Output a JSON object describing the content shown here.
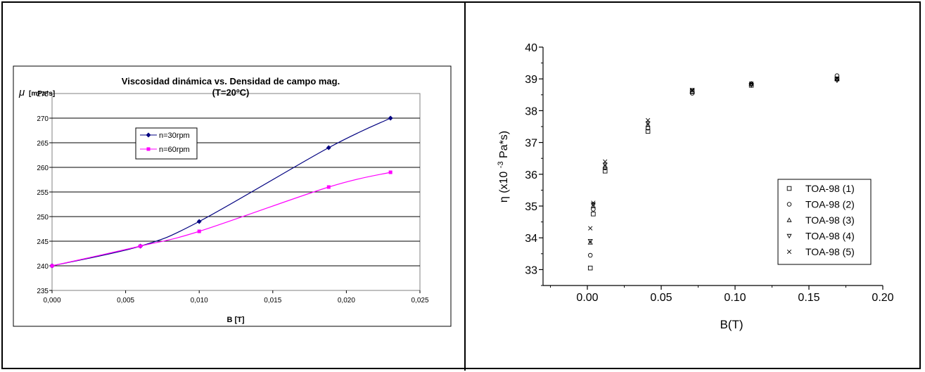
{
  "chart_data": [
    {
      "type": "line",
      "title": "Viscosidad dinámica vs. Densidad de campo mag.",
      "subtitle": "(T=20ºC)",
      "ylabel_symbol": "μ",
      "ylabel": "[mPa*s]",
      "xlabel": "B [T]",
      "xlim": [
        0,
        0.025
      ],
      "ylim": [
        235,
        275
      ],
      "xticks": [
        "0,000",
        "0,005",
        "0,010",
        "0,015",
        "0,020",
        "0,025"
      ],
      "yticks": [
        "235",
        "240",
        "245",
        "250",
        "255",
        "260",
        "265",
        "270",
        "275"
      ],
      "grid": true,
      "legend_position": "upper-left",
      "series": [
        {
          "name": "n=30rpm",
          "color": "#000080",
          "marker": "diamond",
          "x": [
            0,
            0.006,
            0.01,
            0.0188,
            0.023
          ],
          "y": [
            240,
            244,
            249,
            264,
            270
          ]
        },
        {
          "name": "n=60rpm",
          "color": "#ff00ff",
          "marker": "square",
          "x": [
            0,
            0.006,
            0.01,
            0.0188,
            0.023
          ],
          "y": [
            240,
            244,
            247,
            256,
            259
          ]
        }
      ]
    },
    {
      "type": "scatter",
      "ylabel": "η (x10 -3 Pa*s)",
      "ylabel_parts": [
        "η (x10",
        "-3",
        "Pa*s)"
      ],
      "xlabel": "B(T)",
      "xlim": [
        -0.03,
        0.2
      ],
      "ylim": [
        32.5,
        40
      ],
      "xticks": [
        "0.00",
        "0.05",
        "0.10",
        "0.15",
        "0.20"
      ],
      "xtick_values": [
        0,
        0.05,
        0.1,
        0.15,
        0.2
      ],
      "yticks": [
        "33",
        "34",
        "35",
        "36",
        "37",
        "38",
        "39",
        "40"
      ],
      "grid": false,
      "legend_position": "lower-right",
      "series": [
        {
          "name": "TOA-98 (1)",
          "marker": "square",
          "x": [
            0.002,
            0.004,
            0.012,
            0.041,
            0.071,
            0.111,
            0.169
          ],
          "y": [
            33.05,
            34.75,
            36.1,
            37.35,
            38.6,
            38.8,
            39.0
          ]
        },
        {
          "name": "TOA-98 (2)",
          "marker": "circle",
          "x": [
            0.002,
            0.004,
            0.012,
            0.041,
            0.071,
            0.111,
            0.169
          ],
          "y": [
            33.45,
            34.9,
            36.2,
            37.45,
            38.55,
            38.85,
            39.1
          ]
        },
        {
          "name": "TOA-98 (3)",
          "marker": "triangle-up",
          "x": [
            0.002,
            0.004,
            0.012,
            0.041,
            0.071,
            0.111,
            0.169
          ],
          "y": [
            33.85,
            35.0,
            36.25,
            37.55,
            38.6,
            38.85,
            39.0
          ]
        },
        {
          "name": "TOA-98 (4)",
          "marker": "triangle-down",
          "x": [
            0.002,
            0.004,
            0.012,
            0.041,
            0.071,
            0.111,
            0.169
          ],
          "y": [
            33.9,
            35.05,
            36.3,
            37.6,
            38.65,
            38.8,
            38.95
          ]
        },
        {
          "name": "TOA-98 (5)",
          "marker": "x",
          "x": [
            0.002,
            0.004,
            0.012,
            0.041,
            0.071,
            0.111,
            0.169
          ],
          "y": [
            34.3,
            35.1,
            36.4,
            37.7,
            38.65,
            38.85,
            39.0
          ]
        }
      ]
    }
  ]
}
